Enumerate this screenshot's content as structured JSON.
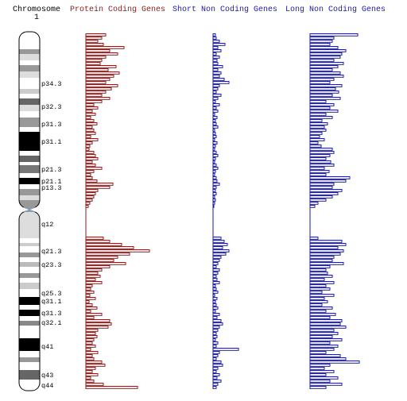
{
  "chart_data": {
    "type": "bar",
    "orientation": "horizontal",
    "title": "Chromosome",
    "subtitle": "1",
    "series": [
      {
        "name": "Protein Coding Genes",
        "color": "#8b1a1a",
        "values": [
          25,
          20,
          15,
          22,
          48,
          30,
          40,
          25,
          20,
          18,
          38,
          28,
          42,
          35,
          30,
          25,
          40,
          32,
          25,
          20,
          30,
          20,
          10,
          15,
          8,
          12,
          6,
          10,
          14,
          8,
          10,
          12,
          6,
          15,
          8,
          5,
          4,
          10,
          12,
          15,
          8,
          12,
          20,
          10,
          6,
          8,
          14,
          34,
          30,
          15,
          12,
          10,
          8,
          5,
          3,
          0,
          0,
          0,
          0,
          0,
          0,
          0,
          0,
          0,
          22,
          30,
          45,
          60,
          80,
          55,
          40,
          35,
          50,
          30,
          20,
          15,
          18,
          12,
          20,
          8,
          6,
          10,
          5,
          12,
          4,
          8,
          14,
          6,
          20,
          10,
          30,
          32,
          28,
          15,
          12,
          14,
          10,
          8,
          12,
          6,
          15,
          8,
          10,
          20,
          24,
          12,
          8,
          15,
          6,
          10,
          22,
          65
        ]
      },
      {
        "name": "Short Non Coding Genes",
        "color": "#1a1aa0",
        "values": [
          3,
          4,
          8,
          15,
          6,
          10,
          4,
          8,
          5,
          6,
          12,
          6,
          10,
          8,
          14,
          20,
          8,
          6,
          4,
          10,
          6,
          3,
          8,
          4,
          6,
          2,
          5,
          3,
          4,
          6,
          2,
          3,
          4,
          2,
          5,
          3,
          2,
          4,
          6,
          3,
          2,
          4,
          6,
          3,
          2,
          4,
          5,
          8,
          4,
          3,
          4,
          2,
          3,
          2,
          1,
          0,
          0,
          0,
          0,
          0,
          0,
          0,
          0,
          0,
          10,
          14,
          18,
          12,
          20,
          16,
          10,
          8,
          6,
          4,
          8,
          6,
          4,
          5,
          8,
          3,
          4,
          6,
          2,
          5,
          3,
          4,
          6,
          3,
          8,
          5,
          10,
          12,
          8,
          6,
          4,
          5,
          3,
          6,
          4,
          32,
          8,
          6,
          4,
          10,
          12,
          6,
          4,
          8,
          5,
          10,
          6,
          4
        ]
      },
      {
        "name": "Long Non Coding Genes",
        "color": "#1a1aa0",
        "values": [
          60,
          30,
          28,
          25,
          35,
          45,
          40,
          38,
          30,
          42,
          35,
          28,
          38,
          42,
          30,
          25,
          40,
          32,
          36,
          28,
          38,
          20,
          30,
          25,
          35,
          20,
          28,
          15,
          22,
          18,
          20,
          15,
          12,
          18,
          10,
          14,
          28,
          30,
          25,
          20,
          26,
          30,
          18,
          24,
          20,
          50,
          45,
          30,
          28,
          40,
          35,
          28,
          20,
          10,
          6,
          0,
          0,
          0,
          0,
          0,
          0,
          0,
          0,
          0,
          10,
          40,
          45,
          35,
          42,
          38,
          30,
          28,
          42,
          25,
          20,
          22,
          28,
          18,
          30,
          20,
          25,
          15,
          30,
          18,
          22,
          15,
          28,
          20,
          32,
          25,
          40,
          38,
          45,
          30,
          35,
          28,
          40,
          25,
          35,
          30,
          20,
          38,
          45,
          62,
          25,
          18,
          30,
          20,
          35,
          25,
          40,
          20
        ]
      }
    ]
  },
  "ideogram": {
    "band_labels": [
      "p34.3",
      "p32.3",
      "p31.3",
      "p31.1",
      "p21.3",
      "p21.1",
      "p13.3",
      "q12",
      "q21.3",
      "q23.3",
      "q25.3",
      "q31.1",
      "q31.3",
      "q32.1",
      "q41",
      "q43",
      "q44"
    ]
  }
}
